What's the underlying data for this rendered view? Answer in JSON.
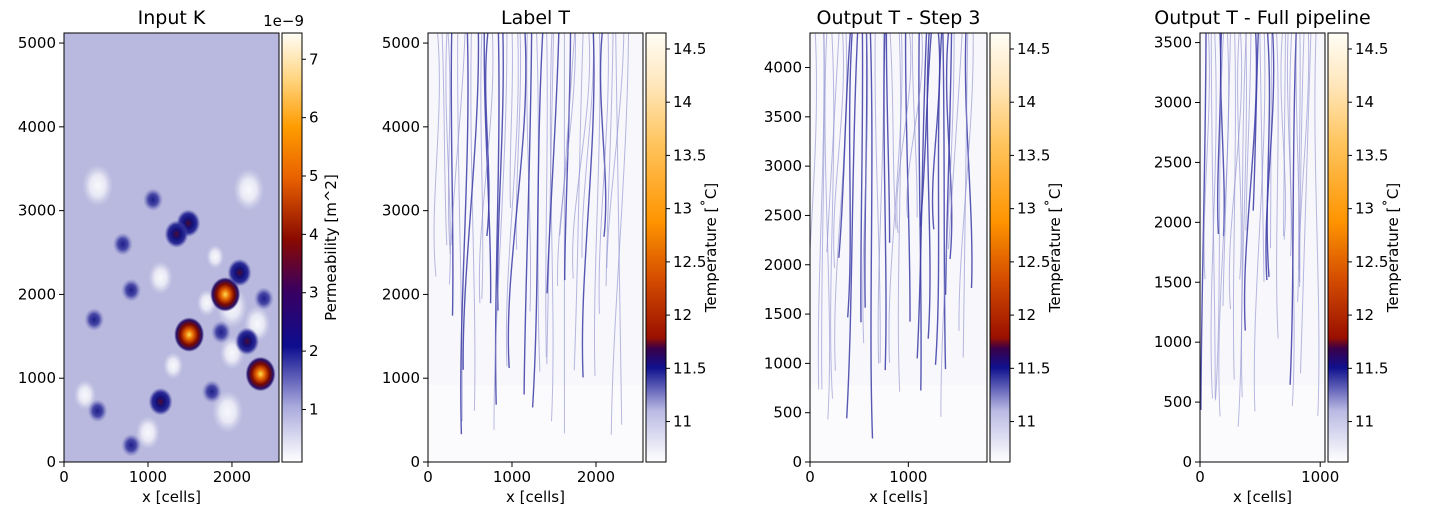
{
  "chart_data": [
    {
      "type": "heatmap",
      "title": "Input K",
      "xlabel": "x [cells]",
      "ylabel": "",
      "xlim": [
        0,
        2560
      ],
      "ylim": [
        0,
        5120
      ],
      "xticks": [
        0,
        1000,
        2000
      ],
      "yticks": [
        0,
        1000,
        2000,
        3000,
        4000,
        5000
      ],
      "colorbar": {
        "label": "Permeability [m^2]",
        "offset_text": "1e−9",
        "range": [
          0.1,
          7.45
        ],
        "ticks": [
          1,
          2,
          3,
          4,
          5,
          6,
          7
        ],
        "colormap": "white-darkblue-darkred-orange-lightyellow"
      },
      "hotspots": [
        {
          "x": 1920,
          "y": 2000,
          "value": 7.2
        },
        {
          "x": 2340,
          "y": 1050,
          "value": 7.0
        },
        {
          "x": 1490,
          "y": 1520,
          "value": 5.0
        },
        {
          "x": 2180,
          "y": 1440,
          "value": 3.5
        },
        {
          "x": 1480,
          "y": 2850,
          "value": 3.0
        },
        {
          "x": 1340,
          "y": 2720,
          "value": 2.6
        },
        {
          "x": 1150,
          "y": 720,
          "value": 2.7
        },
        {
          "x": 2090,
          "y": 2260,
          "value": 2.5
        },
        {
          "x": 1060,
          "y": 3130,
          "value": 2.2
        },
        {
          "x": 1870,
          "y": 1550,
          "value": 2.0
        },
        {
          "x": 360,
          "y": 1700,
          "value": 1.9
        },
        {
          "x": 400,
          "y": 610,
          "value": 1.8
        },
        {
          "x": 800,
          "y": 200,
          "value": 1.8
        },
        {
          "x": 700,
          "y": 2600,
          "value": 1.7
        },
        {
          "x": 800,
          "y": 2050,
          "value": 1.6
        },
        {
          "x": 1760,
          "y": 840,
          "value": 1.6
        },
        {
          "x": 2380,
          "y": 1950,
          "value": 1.5
        }
      ]
    },
    {
      "type": "heatmap",
      "title": "Label T",
      "xlabel": "x [cells]",
      "ylabel": "",
      "xlim": [
        0,
        2560
      ],
      "ylim": [
        0,
        5120
      ],
      "xticks": [
        0,
        1000,
        2000
      ],
      "yticks": [
        0,
        1000,
        2000,
        3000,
        4000,
        5000
      ],
      "colorbar": {
        "label": "Temperature [$^\\circ$C]",
        "range": [
          10.62,
          14.65
        ],
        "ticks": [
          11.0,
          11.5,
          12.0,
          12.5,
          13.0,
          13.5,
          14.0,
          14.5
        ],
        "colormap": "white-darkblue-darkred-orange-lightyellow"
      }
    },
    {
      "type": "heatmap",
      "title": "Output T - Step 3",
      "xlabel": "x [cells]",
      "ylabel": "",
      "xlim": [
        0,
        1800
      ],
      "ylim": [
        0,
        4350
      ],
      "xticks": [
        0,
        1000
      ],
      "yticks": [
        0,
        500,
        1000,
        1500,
        2000,
        2500,
        3000,
        3500,
        4000
      ],
      "colorbar": {
        "label": "Temperature [$^\\circ$C]",
        "range": [
          10.62,
          14.65
        ],
        "ticks": [
          11.0,
          11.5,
          12.0,
          12.5,
          13.0,
          13.5,
          14.0,
          14.5
        ],
        "colormap": "white-darkblue-darkred-orange-lightyellow"
      }
    },
    {
      "type": "heatmap",
      "title": "Output T - Full pipeline",
      "xlabel": "x [cells]",
      "ylabel": "",
      "xlim": [
        0,
        1040
      ],
      "ylim": [
        0,
        3580
      ],
      "xticks": [
        0,
        1000
      ],
      "yticks": [
        0,
        500,
        1000,
        1500,
        2000,
        2500,
        3000,
        3500
      ],
      "colorbar": {
        "label": "Temperature [$^\\circ$C]",
        "range": [
          10.62,
          14.65
        ],
        "ticks": [
          11.0,
          11.5,
          12.0,
          12.5,
          13.0,
          13.5,
          14.0,
          14.5
        ],
        "colormap": "white-darkblue-darkred-orange-lightyellow"
      }
    }
  ]
}
